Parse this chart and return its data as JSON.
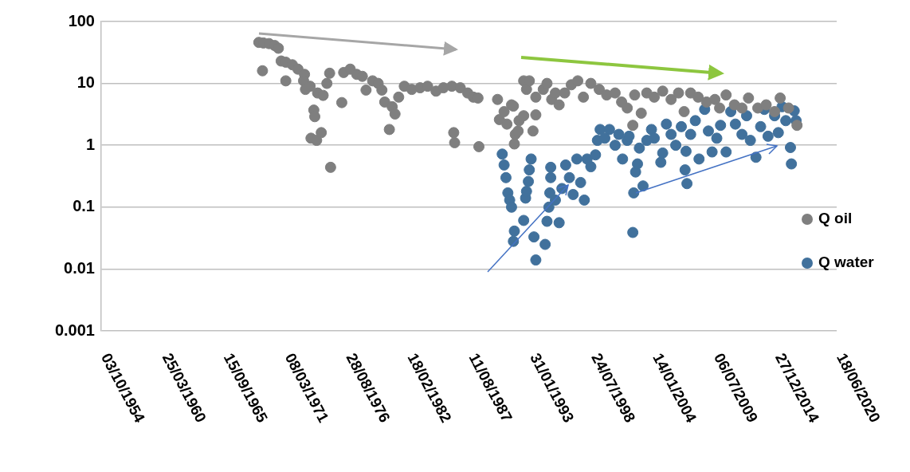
{
  "chart_data": {
    "type": "scatter",
    "log": "y",
    "grid": "y",
    "legend": "right",
    "marker": "circle",
    "xlim": [
      "1954-10-03",
      "2020-06-18"
    ],
    "xticks": [
      {
        "value": "1954-10-03",
        "label": "03/10/1954"
      },
      {
        "value": "1960-03-25",
        "label": "25/03/1960"
      },
      {
        "value": "1965-09-15",
        "label": "15/09/1965"
      },
      {
        "value": "1971-03-08",
        "label": "08/03/1971"
      },
      {
        "value": "1976-08-28",
        "label": "28/08/1976"
      },
      {
        "value": "1982-02-18",
        "label": "18/02/1982"
      },
      {
        "value": "1987-08-11",
        "label": "11/08/1987"
      },
      {
        "value": "1993-01-31",
        "label": "31/01/1993"
      },
      {
        "value": "1998-07-24",
        "label": "24/07/1998"
      },
      {
        "value": "2004-01-14",
        "label": "14/01/2004"
      },
      {
        "value": "2009-07-06",
        "label": "06/07/2009"
      },
      {
        "value": "2014-12-27",
        "label": "27/12/2014"
      },
      {
        "value": "2020-06-18",
        "label": "18/06/2020"
      }
    ],
    "ylim": [
      0.001,
      100
    ],
    "yticks": [
      0.001,
      0.01,
      0.1,
      1,
      10,
      100
    ],
    "series": [
      {
        "name": "Q oil",
        "color": "#7f7f7f",
        "x": [
          "1968-11",
          "1969-04",
          "1969-10",
          "1970-04",
          "1970-08",
          "1969-03",
          "1970-11",
          "1971-04",
          "1971-04",
          "1971-11",
          "1972-05",
          "1972-12",
          "1972-11",
          "1973-01",
          "1973-06",
          "1973-10",
          "1973-11",
          "1973-07",
          "1974-01",
          "1974-02",
          "1974-06",
          "1974-08",
          "1974-12",
          "1975-03",
          "1975-04",
          "1976-04",
          "1976-06",
          "1977-01",
          "1977-08",
          "1978-02",
          "1978-06",
          "1979-01",
          "1979-07",
          "1979-11",
          "1980-02",
          "1980-07",
          "1980-10",
          "1981-01",
          "1981-05",
          "1981-11",
          "1982-07",
          "1983-04",
          "1983-12",
          "1984-09",
          "1985-05",
          "1986-02",
          "1986-04",
          "1986-05",
          "1986-11",
          "1987-07",
          "1988-01",
          "1988-07",
          "1988-06",
          "1990-03",
          "1990-05",
          "1990-10",
          "1991-01",
          "1991-06",
          "1991-08",
          "1991-09",
          "1991-10",
          "1992-01",
          "1992-02",
          "1992-07",
          "1992-07",
          "1992-10",
          "1993-01",
          "1993-05",
          "1993-08",
          "1993-08",
          "1994-04",
          "1994-08",
          "1995-01",
          "1995-05",
          "1995-09",
          "1996-03",
          "1996-10",
          "1997-05",
          "1997-11",
          "1998-07",
          "1999-04",
          "1999-12",
          "2000-09",
          "2001-04",
          "2001-10",
          "2002-04",
          "2002-06",
          "2003-01",
          "2003-07",
          "2004-03",
          "2004-12",
          "2005-09",
          "2006-05",
          "2006-11",
          "2007-06",
          "2008-02",
          "2008-11",
          "2009-08",
          "2010-01",
          "2010-08",
          "2011-05",
          "2012-01",
          "2012-08",
          "2013-06",
          "2014-03",
          "2014-12",
          "2015-06",
          "2016-03",
          "2016-12"
        ],
        "values": [
          46,
          45,
          44,
          41,
          37,
          16,
          23,
          22,
          11,
          20,
          17,
          14,
          11,
          8,
          9,
          3.7,
          2.9,
          1.3,
          1.2,
          7,
          1.6,
          6.4,
          10,
          14.6,
          0.44,
          4.9,
          15,
          17,
          14,
          13,
          7.8,
          11,
          10,
          7.8,
          5,
          1.8,
          4.2,
          3.2,
          6,
          9,
          8,
          8.5,
          9,
          7.5,
          8.5,
          9,
          1.6,
          1.1,
          8.5,
          7,
          6,
          0.95,
          5.8,
          5.5,
          2.6,
          3.5,
          2.2,
          4.5,
          4.3,
          1.05,
          1.5,
          1.7,
          2.5,
          3,
          11,
          8,
          11,
          1.7,
          3.1,
          6,
          8,
          10,
          5.5,
          7,
          4.5,
          7,
          9.5,
          11,
          6,
          10,
          8,
          6.5,
          7,
          5,
          4,
          2.1,
          6.5,
          3.3,
          7,
          6,
          7.5,
          5.5,
          7,
          3.5,
          7,
          6,
          5,
          5.5,
          4,
          6.5,
          4.5,
          4,
          5.8,
          4,
          4.5,
          3.5,
          5.8,
          4,
          2.1
        ]
      },
      {
        "name": "Q water",
        "color": "#41719c",
        "x": [
          "1990-08",
          "1990-10",
          "1990-12",
          "1991-02",
          "1991-04",
          "1991-06",
          "1991-08",
          "1991-09",
          "1992-07",
          "1992-09",
          "1992-10",
          "1992-12",
          "1993-01",
          "1993-03",
          "1993-06",
          "1993-08",
          "1994-06",
          "1994-08",
          "1994-10",
          "1994-11",
          "1994-12",
          "1994-12",
          "1995-05",
          "1995-09",
          "1995-12",
          "1996-04",
          "1996-08",
          "1996-12",
          "1997-04",
          "1997-08",
          "1997-12",
          "1998-03",
          "1998-07",
          "1998-12",
          "1999-02",
          "1999-05",
          "1999-10",
          "2000-03",
          "2000-09",
          "2001-01",
          "2001-05",
          "2001-10",
          "2001-12",
          "2002-04",
          "2002-05",
          "2002-07",
          "2002-09",
          "2002-11",
          "2003-03",
          "2003-07",
          "2003-12",
          "2004-03",
          "2004-10",
          "2004-12",
          "2005-04",
          "2005-09",
          "2006-02",
          "2006-08",
          "2006-12",
          "2007-01",
          "2007-02",
          "2007-06",
          "2007-11",
          "2008-03",
          "2008-09",
          "2009-01",
          "2009-05",
          "2009-10",
          "2010-02",
          "2010-08",
          "2011-01",
          "2011-06",
          "2012-01",
          "2012-06",
          "2012-10",
          "2013-04",
          "2013-09",
          "2014-01",
          "2014-05",
          "2014-12",
          "2015-04",
          "2015-08",
          "2015-12",
          "2016-05",
          "2016-06",
          "2016-09",
          "2016-11"
        ],
        "values": [
          0.72,
          0.48,
          0.3,
          0.17,
          0.13,
          0.1,
          0.028,
          0.041,
          0.061,
          0.14,
          0.18,
          0.26,
          0.4,
          0.6,
          0.033,
          0.014,
          0.025,
          0.059,
          0.1,
          0.17,
          0.3,
          0.44,
          0.13,
          0.056,
          0.2,
          0.48,
          0.3,
          0.16,
          0.6,
          0.25,
          0.13,
          0.6,
          0.45,
          0.7,
          1.2,
          1.8,
          1.3,
          1.8,
          1,
          1.5,
          0.6,
          1.2,
          1.4,
          0.039,
          0.17,
          0.37,
          0.5,
          0.9,
          0.22,
          1.2,
          1.8,
          1.3,
          0.53,
          0.75,
          2.2,
          1.5,
          1,
          2,
          0.4,
          0.8,
          0.24,
          1.5,
          2.5,
          0.6,
          3.8,
          1.7,
          0.78,
          1.3,
          2.1,
          0.78,
          3.5,
          2.2,
          1.5,
          3,
          1.2,
          0.64,
          2,
          3.8,
          1.4,
          3,
          1.6,
          4.2,
          2.5,
          0.92,
          0.5,
          3.6,
          2.5
        ]
      }
    ]
  }
}
